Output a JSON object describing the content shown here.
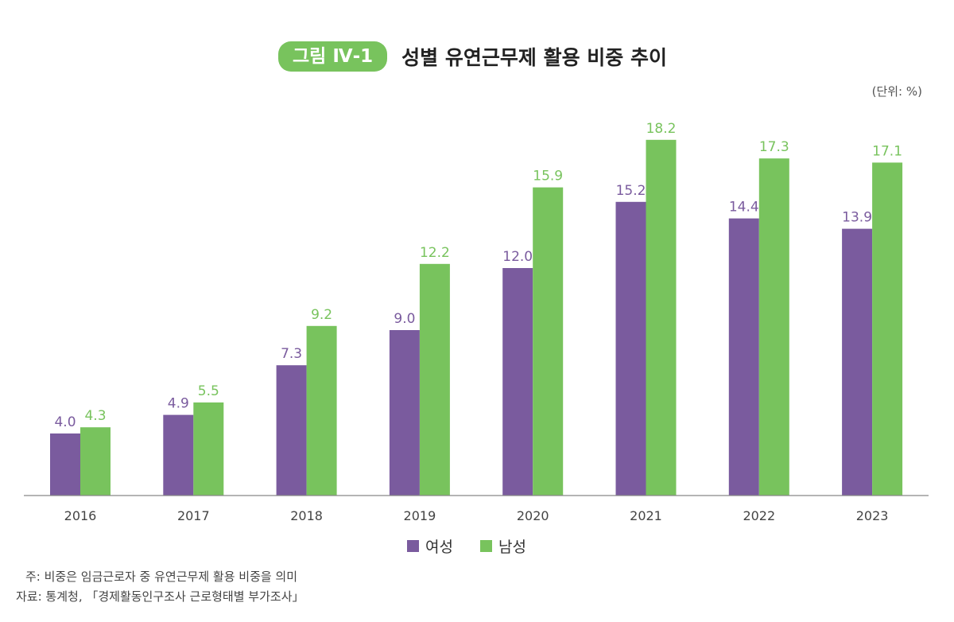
{
  "figure_label": "그림 Ⅳ-1",
  "chart_data": {
    "type": "bar",
    "title": "성별 유연근무제 활용 비중 추이",
    "unit_label": "(단위: %)",
    "categories": [
      "2016",
      "2017",
      "2018",
      "2019",
      "2020",
      "2021",
      "2022",
      "2023"
    ],
    "series": [
      {
        "name": "여성",
        "color": "#7a5b9e",
        "values": [
          4.0,
          4.9,
          7.3,
          9.0,
          12.0,
          15.2,
          14.4,
          13.9
        ]
      },
      {
        "name": "남성",
        "color": "#78c35d",
        "values": [
          4.3,
          5.5,
          9.2,
          12.2,
          15.9,
          18.2,
          17.3,
          17.1
        ]
      }
    ],
    "ylim": [
      1,
      19
    ],
    "grid": false,
    "legend_placement": "bottom"
  },
  "notes": {
    "note": "주: 비중은 임금근로자 중 유연근무제 활용 비중을 의미",
    "source": "자료: 통계청, 「경제활동인구조사 근로형태별 부가조사」"
  }
}
